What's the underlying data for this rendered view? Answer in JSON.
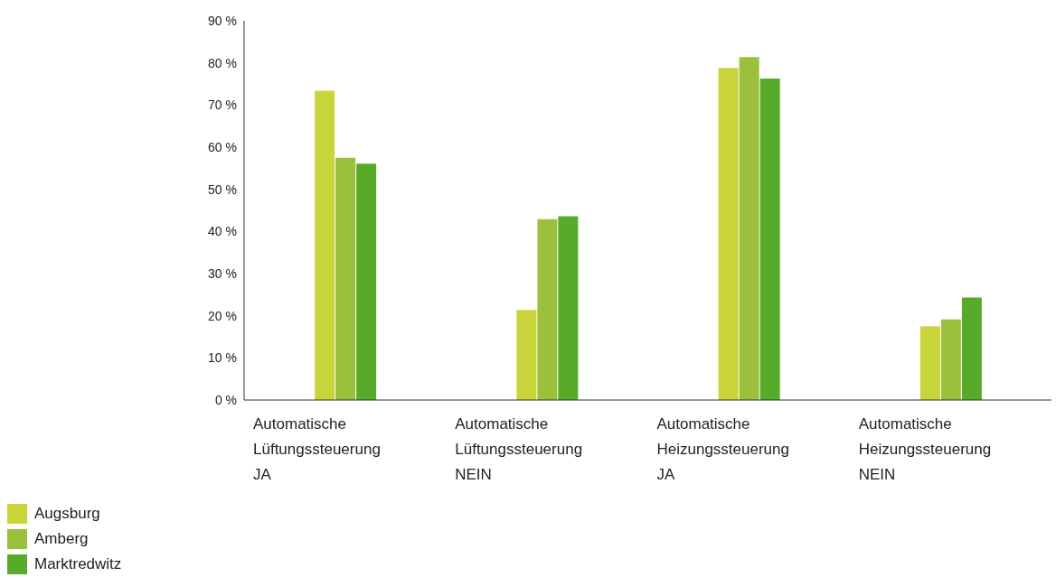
{
  "chart_data": {
    "type": "bar",
    "categories": [
      "Automatische\nLüftungssteuerung\nJA",
      "Automatische\nLüftungssteuerung\nNEIN",
      "Automatische\nHeizungssteuerung\nJA",
      "Automatische\nHeizungssteuerung\nNEIN"
    ],
    "series": [
      {
        "name": "Augsburg",
        "color": "#c8d43a",
        "values": [
          73.4,
          21.4,
          78.8,
          17.5
        ]
      },
      {
        "name": "Amberg",
        "color": "#9bc03c",
        "values": [
          57.5,
          42.9,
          81.4,
          19.1
        ]
      },
      {
        "name": "Marktredwitz",
        "color": "#58ab2a",
        "values": [
          56.1,
          43.6,
          76.3,
          24.3
        ]
      }
    ],
    "ylim": [
      0,
      90
    ],
    "yticks": [
      {
        "value": 0,
        "label": "0 %"
      },
      {
        "value": 10,
        "label": "10 %"
      },
      {
        "value": 20,
        "label": "20 %"
      },
      {
        "value": 30,
        "label": "30 %"
      },
      {
        "value": 40,
        "label": "40 %"
      },
      {
        "value": 50,
        "label": "50 %"
      },
      {
        "value": 60,
        "label": "60 %"
      },
      {
        "value": 70,
        "label": "70 %"
      },
      {
        "value": 80,
        "label": "80 %"
      },
      {
        "value": 90,
        "label": "90 %"
      }
    ],
    "grid": false,
    "legend": "bottom left"
  }
}
